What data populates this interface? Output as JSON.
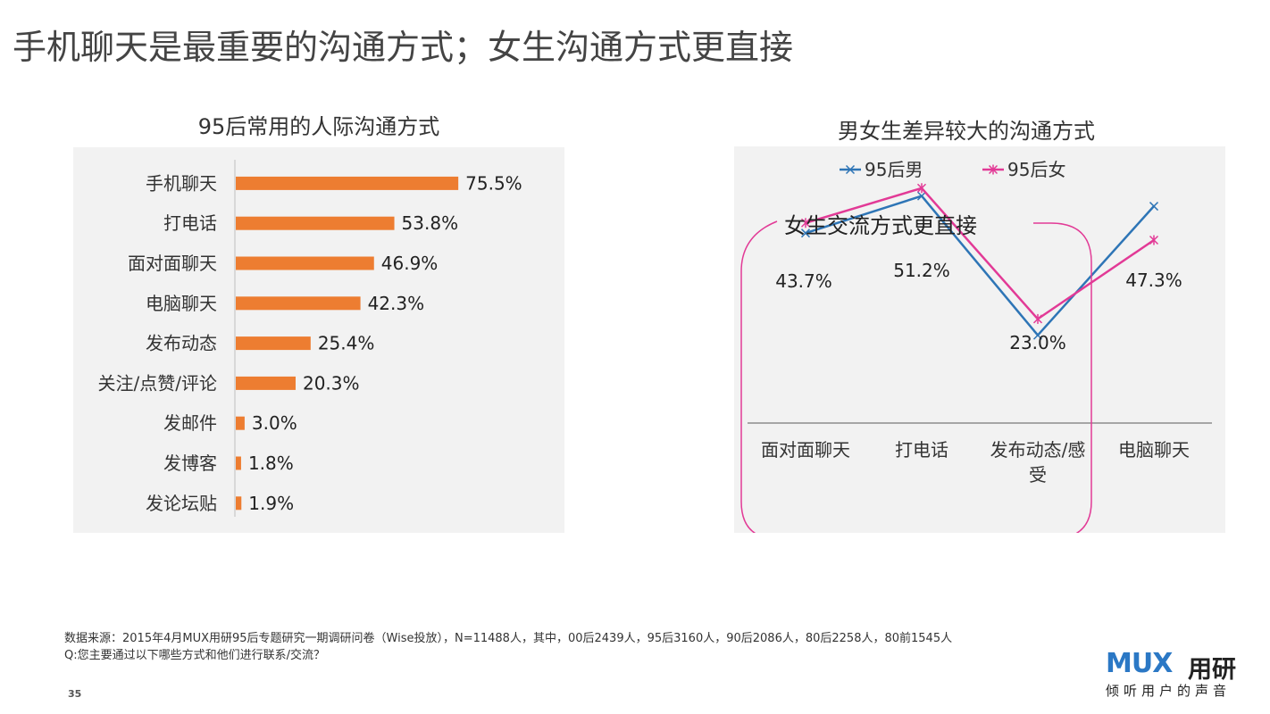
{
  "page_title": "手机聊天是最重要的沟通方式；女生沟通方式更直接",
  "chart_data": [
    {
      "type": "bar",
      "orientation": "horizontal",
      "title": "95后常用的人际沟通方式",
      "categories": [
        "手机聊天",
        "打电话",
        "面对面聊天",
        "电脑聊天",
        "发布动态",
        "关注/点赞/评论",
        "发邮件",
        "发博客",
        "发论坛贴"
      ],
      "values": [
        75.5,
        53.8,
        46.9,
        42.3,
        25.4,
        20.3,
        3.0,
        1.8,
        1.9
      ],
      "labels": [
        "75.5%",
        "53.8%",
        "46.9%",
        "42.3%",
        "25.4%",
        "20.3%",
        "3.0%",
        "1.8%",
        "1.9%"
      ],
      "unit": "%",
      "color": "#ed7d31",
      "xlim": [
        0,
        100
      ]
    },
    {
      "type": "line",
      "title": "男女生差异较大的沟通方式",
      "categories": [
        "面对面聊天",
        "打电话",
        "发布动态/感受",
        "电脑聊天"
      ],
      "category_lines": [
        [
          "面对面聊天"
        ],
        [
          "打电话"
        ],
        [
          "发布动态/感",
          "受"
        ],
        [
          "电脑聊天"
        ]
      ],
      "series": [
        {
          "name": "95后男",
          "values": [
            41.5,
            49.5,
            19.5,
            47.3
          ],
          "color": "#2e75b6",
          "marker": "x"
        },
        {
          "name": "95后女",
          "values": [
            43.7,
            51.2,
            23.0,
            40.0
          ],
          "color": "#e23a96",
          "marker": "*"
        }
      ],
      "data_labels": [
        {
          "category": "面对面聊天",
          "text": "43.7%"
        },
        {
          "category": "打电话",
          "text": "51.2%"
        },
        {
          "category": "发布动态/感受",
          "text": "23.0%"
        },
        {
          "category": "电脑聊天",
          "text": "47.3%"
        }
      ],
      "annotation": "女生交流方式更直接",
      "legend_position": "top",
      "ylim": [
        0,
        70
      ]
    }
  ],
  "footer": {
    "source": "数据来源：2015年4月MUX用研95后专题研究一期调研问卷（Wise投放），N=11488人，其中，00后2439人，95后3160人，90后2086人，80后2258人，80前1545人",
    "question": "Q:您主要通过以下哪些方式和他们进行联系/交流？",
    "page_number": "35"
  },
  "logo": {
    "mark": "MUX",
    "name": "用研",
    "tagline": "倾听用户的声音"
  }
}
